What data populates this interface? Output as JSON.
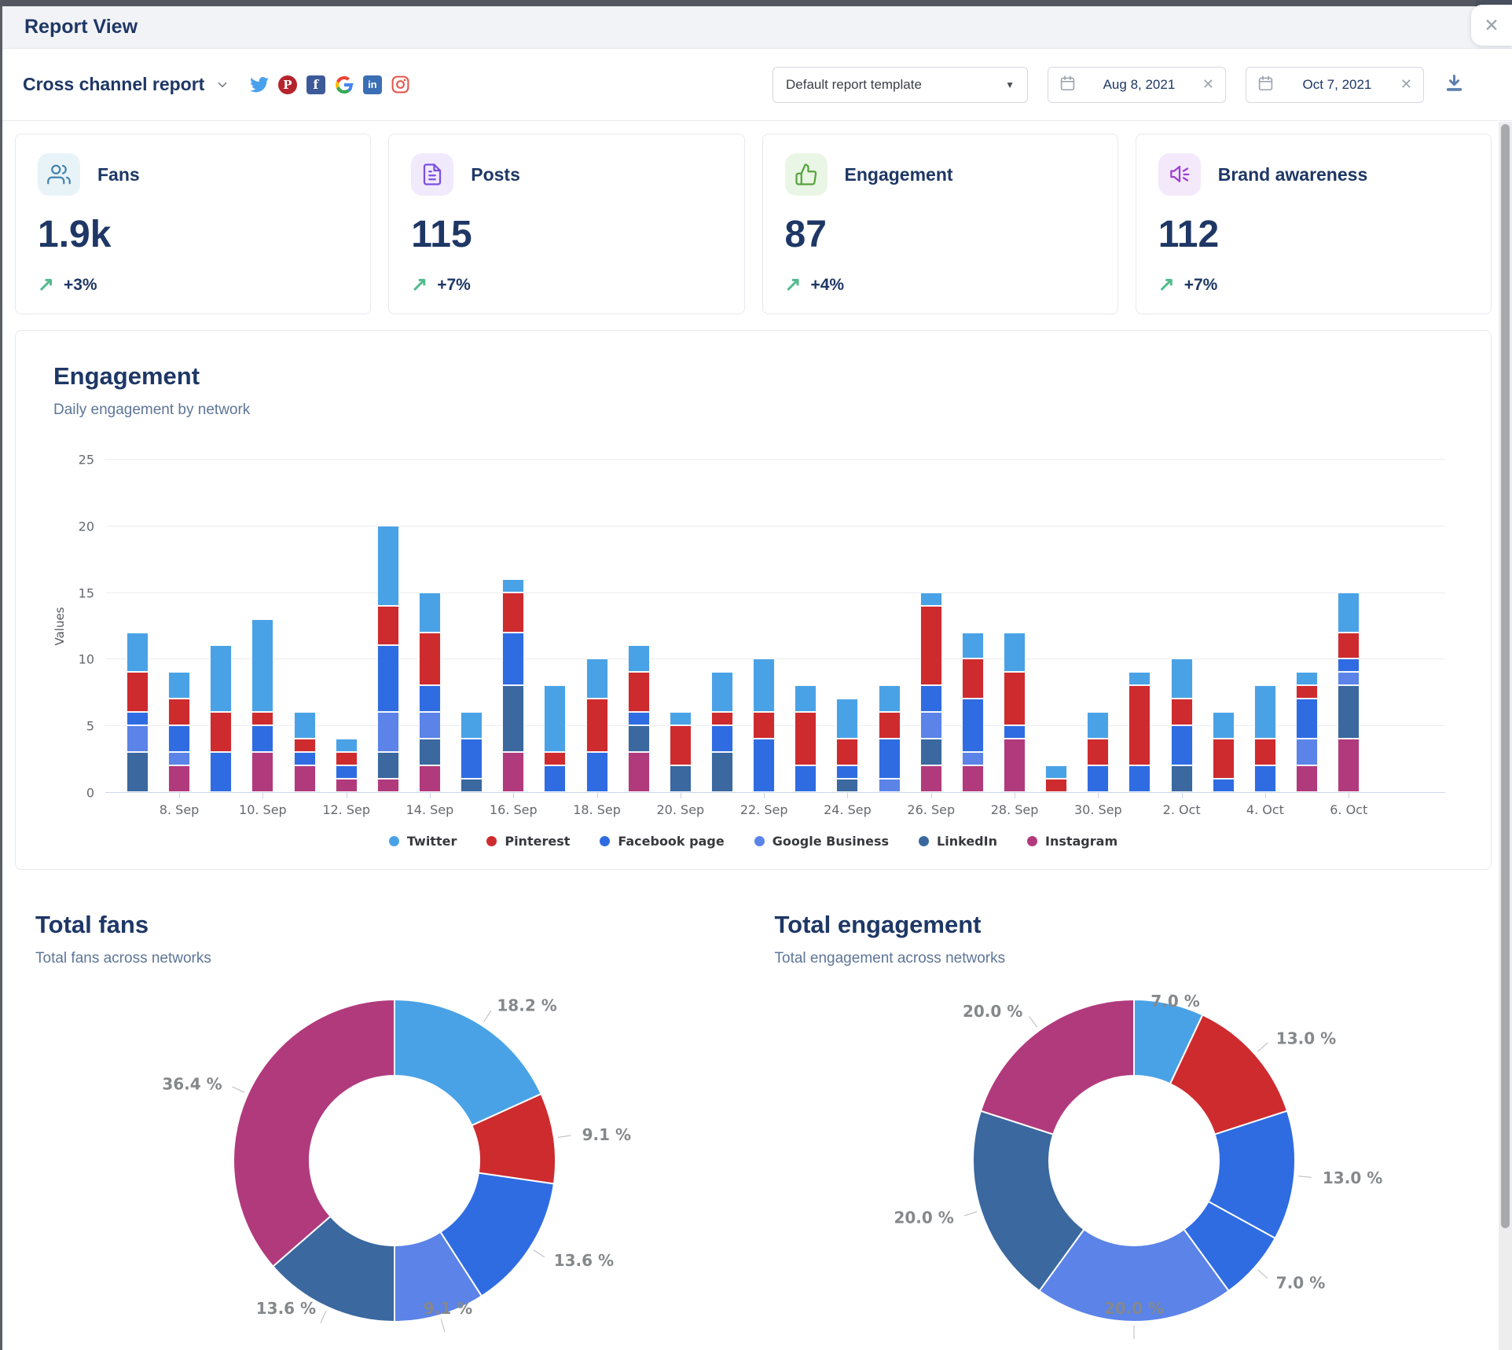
{
  "modal": {
    "title": "Report View",
    "close_label": "✕"
  },
  "toolbar": {
    "report_name": "Cross channel report",
    "template_label": "Default report template",
    "date_from": "Aug 8, 2021",
    "date_to": "Oct 7, 2021",
    "networks": [
      "Twitter",
      "Pinterest",
      "Facebook",
      "Google",
      "LinkedIn",
      "Instagram"
    ]
  },
  "kpis": [
    {
      "label": "Fans",
      "value": "1.9k",
      "delta": "+3%",
      "icon": "users-icon",
      "icon_color": "#4583ab",
      "icon_bg": "#e8f3f8"
    },
    {
      "label": "Posts",
      "value": "115",
      "delta": "+7%",
      "icon": "document-icon",
      "icon_color": "#7c4fe0",
      "icon_bg": "#f1e9fc"
    },
    {
      "label": "Engagement",
      "value": "87",
      "delta": "+4%",
      "icon": "thumbs-up-icon",
      "icon_color": "#55a43c",
      "icon_bg": "#eaf6e5"
    },
    {
      "label": "Brand awareness",
      "value": "112",
      "delta": "+7%",
      "icon": "megaphone-icon",
      "icon_color": "#9b3fd1",
      "icon_bg": "#f4e9fb"
    }
  ],
  "colors": {
    "accent_navy": "#1e3765",
    "subtitle": "#5e7598",
    "trend_green": "#53bb8c",
    "twitter": "#4aa2e6",
    "pinterest": "#ce2b2f",
    "facebook": "#2f6ce2",
    "google": "#5b83e8",
    "linkedin": "#3a689f",
    "instagram": "#b13a7d"
  },
  "chart_data": [
    {
      "type": "bar",
      "stacked": true,
      "title": "Engagement",
      "subtitle": "Daily engagement by network",
      "xlabel": "",
      "ylabel": "Values",
      "ylim": [
        0,
        25
      ],
      "y_ticks": [
        0,
        5,
        10,
        15,
        20,
        25
      ],
      "grid": true,
      "legend_position": "bottom",
      "x_tick_every": 2,
      "x_tick_start": 1,
      "categories": [
        "7. Sep",
        "8. Sep",
        "9. Sep",
        "10. Sep",
        "11. Sep",
        "12. Sep",
        "13. Sep",
        "14. Sep",
        "15. Sep",
        "16. Sep",
        "17. Sep",
        "18. Sep",
        "19. Sep",
        "20. Sep",
        "21. Sep",
        "22. Sep",
        "23. Sep",
        "24. Sep",
        "25. Sep",
        "26. Sep",
        "27. Sep",
        "28. Sep",
        "29. Sep",
        "30. Sep",
        "1. Oct",
        "2. Oct",
        "3. Oct",
        "4. Oct",
        "5. Oct",
        "6. Oct"
      ],
      "series": [
        {
          "name": "Twitter",
          "color": "#4aa2e6",
          "values": [
            3,
            2,
            5,
            7,
            2,
            1,
            6,
            3,
            2,
            1,
            5,
            3,
            2,
            1,
            3,
            4,
            2,
            3,
            2,
            1,
            2,
            3,
            1,
            2,
            1,
            3,
            2,
            4,
            1,
            3
          ]
        },
        {
          "name": "Pinterest",
          "color": "#ce2b2f",
          "values": [
            3,
            2,
            3,
            1,
            1,
            1,
            3,
            4,
            0,
            3,
            1,
            4,
            3,
            3,
            1,
            2,
            4,
            2,
            2,
            6,
            3,
            4,
            1,
            2,
            6,
            2,
            3,
            2,
            1,
            2
          ]
        },
        {
          "name": "Facebook page",
          "color": "#2f6ce2",
          "values": [
            1,
            2,
            3,
            2,
            1,
            1,
            5,
            2,
            3,
            4,
            2,
            3,
            1,
            0,
            2,
            4,
            2,
            1,
            3,
            2,
            4,
            1,
            0,
            2,
            2,
            3,
            1,
            2,
            3,
            1
          ]
        },
        {
          "name": "Google Business",
          "color": "#5b83e8",
          "values": [
            2,
            1,
            0,
            0,
            0,
            0,
            3,
            2,
            0,
            0,
            0,
            0,
            0,
            0,
            0,
            0,
            0,
            0,
            1,
            2,
            1,
            0,
            0,
            0,
            0,
            0,
            0,
            0,
            2,
            1
          ]
        },
        {
          "name": "LinkedIn",
          "color": "#3a689f",
          "values": [
            3,
            0,
            0,
            0,
            0,
            0,
            2,
            2,
            1,
            5,
            0,
            0,
            2,
            2,
            3,
            0,
            0,
            1,
            0,
            2,
            0,
            0,
            0,
            0,
            0,
            2,
            0,
            0,
            0,
            4
          ]
        },
        {
          "name": "Instagram",
          "color": "#b13a7d",
          "values": [
            0,
            2,
            0,
            3,
            2,
            1,
            1,
            2,
            0,
            3,
            0,
            0,
            3,
            0,
            0,
            0,
            0,
            0,
            0,
            2,
            2,
            4,
            0,
            0,
            0,
            0,
            0,
            0,
            2,
            4
          ]
        }
      ]
    },
    {
      "type": "pie",
      "donut": true,
      "title": "Total fans",
      "subtitle": "Total fans across networks",
      "segments": [
        {
          "label": "Twitter",
          "value": 18.2,
          "color": "#4aa2e6"
        },
        {
          "label": "Pinterest",
          "value": 9.1,
          "color": "#ce2b2f"
        },
        {
          "label": "Facebook page",
          "value": 13.6,
          "color": "#2f6ce2"
        },
        {
          "label": "Google Business",
          "value": 9.1,
          "color": "#5b83e8"
        },
        {
          "label": "LinkedIn",
          "value": 13.6,
          "color": "#3a689f"
        },
        {
          "label": "Instagram",
          "value": 36.4,
          "color": "#b13a7d"
        }
      ]
    },
    {
      "type": "pie",
      "donut": true,
      "title": "Total engagement",
      "subtitle": "Total engagement across networks",
      "segments": [
        {
          "label": "Twitter",
          "value": 7.0,
          "color": "#4aa2e6"
        },
        {
          "label": "Pinterest",
          "value": 13.0,
          "color": "#ce2b2f"
        },
        {
          "label": "Facebook page",
          "value": 13.0,
          "color": "#2f6ce2"
        },
        {
          "label": "Facebook page",
          "value": 7.0,
          "color": "#2f6ce2"
        },
        {
          "label": "Google Business",
          "value": 20.0,
          "color": "#5b83e8"
        },
        {
          "label": "LinkedIn",
          "value": 20.0,
          "color": "#3a689f"
        },
        {
          "label": "Instagram",
          "value": 20.0,
          "color": "#b13a7d"
        }
      ]
    }
  ]
}
